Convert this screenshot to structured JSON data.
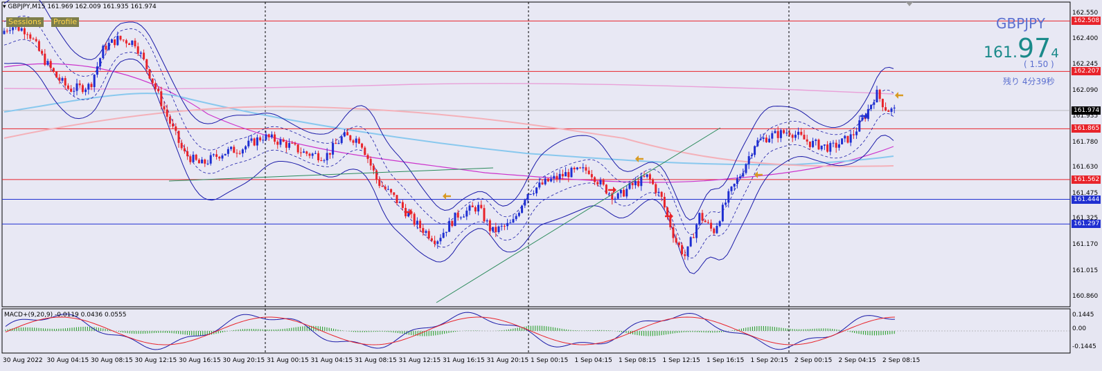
{
  "header": {
    "symbol_info": "GBPJPY,M15",
    "ohlc": "161.969 162.009 161.935 161.974"
  },
  "buttons": {
    "sessions": "Sessions",
    "profile": "Profile"
  },
  "overlay": {
    "pair": "GBPJPY",
    "price_main": "161.",
    "price_big": "97",
    "price_small": "4",
    "change": "( 1.50 )",
    "timer": "残り 4分39秒"
  },
  "price_axis": {
    "ticks": [
      "162.550",
      "162.400",
      "162.245",
      "162.090",
      "161.935",
      "161.780",
      "161.630",
      "161.475",
      "161.325",
      "161.170",
      "161.015",
      "160.860"
    ]
  },
  "level_badges": [
    {
      "value": "162.508",
      "color": "#e8232a"
    },
    {
      "value": "162.207",
      "color": "#e8232a"
    },
    {
      "value": "161.974",
      "color": "#000000"
    },
    {
      "value": "161.865",
      "color": "#e8232a"
    },
    {
      "value": "161.562",
      "color": "#e8232a"
    },
    {
      "value": "161.444",
      "color": "#1f2fd1"
    },
    {
      "value": "161.297",
      "color": "#1f2fd1"
    }
  ],
  "macd": {
    "label": "MACD+(9,20,9) -0.0119 0.0436 0.0555",
    "ticks": [
      "0.1445",
      "0.00",
      "-0.1445"
    ]
  },
  "time_axis": [
    "30 Aug 2022",
    "30 Aug 04:15",
    "30 Aug 08:15",
    "30 Aug 12:15",
    "30 Aug 16:15",
    "30 Aug 20:15",
    "31 Aug 00:15",
    "31 Aug 04:15",
    "31 Aug 08:15",
    "31 Aug 12:15",
    "31 Aug 16:15",
    "31 Aug 20:15",
    "1 Sep 00:15",
    "1 Sep 04:15",
    "1 Sep 08:15",
    "1 Sep 12:15",
    "1 Sep 16:15",
    "1 Sep 20:15",
    "2 Sep 00:15",
    "2 Sep 04:15",
    "2 Sep 08:15"
  ],
  "colors": {
    "background": "#e6e6f2",
    "bull": "#1f2fd1",
    "bear": "#e8232a",
    "grid": "#000000"
  }
}
